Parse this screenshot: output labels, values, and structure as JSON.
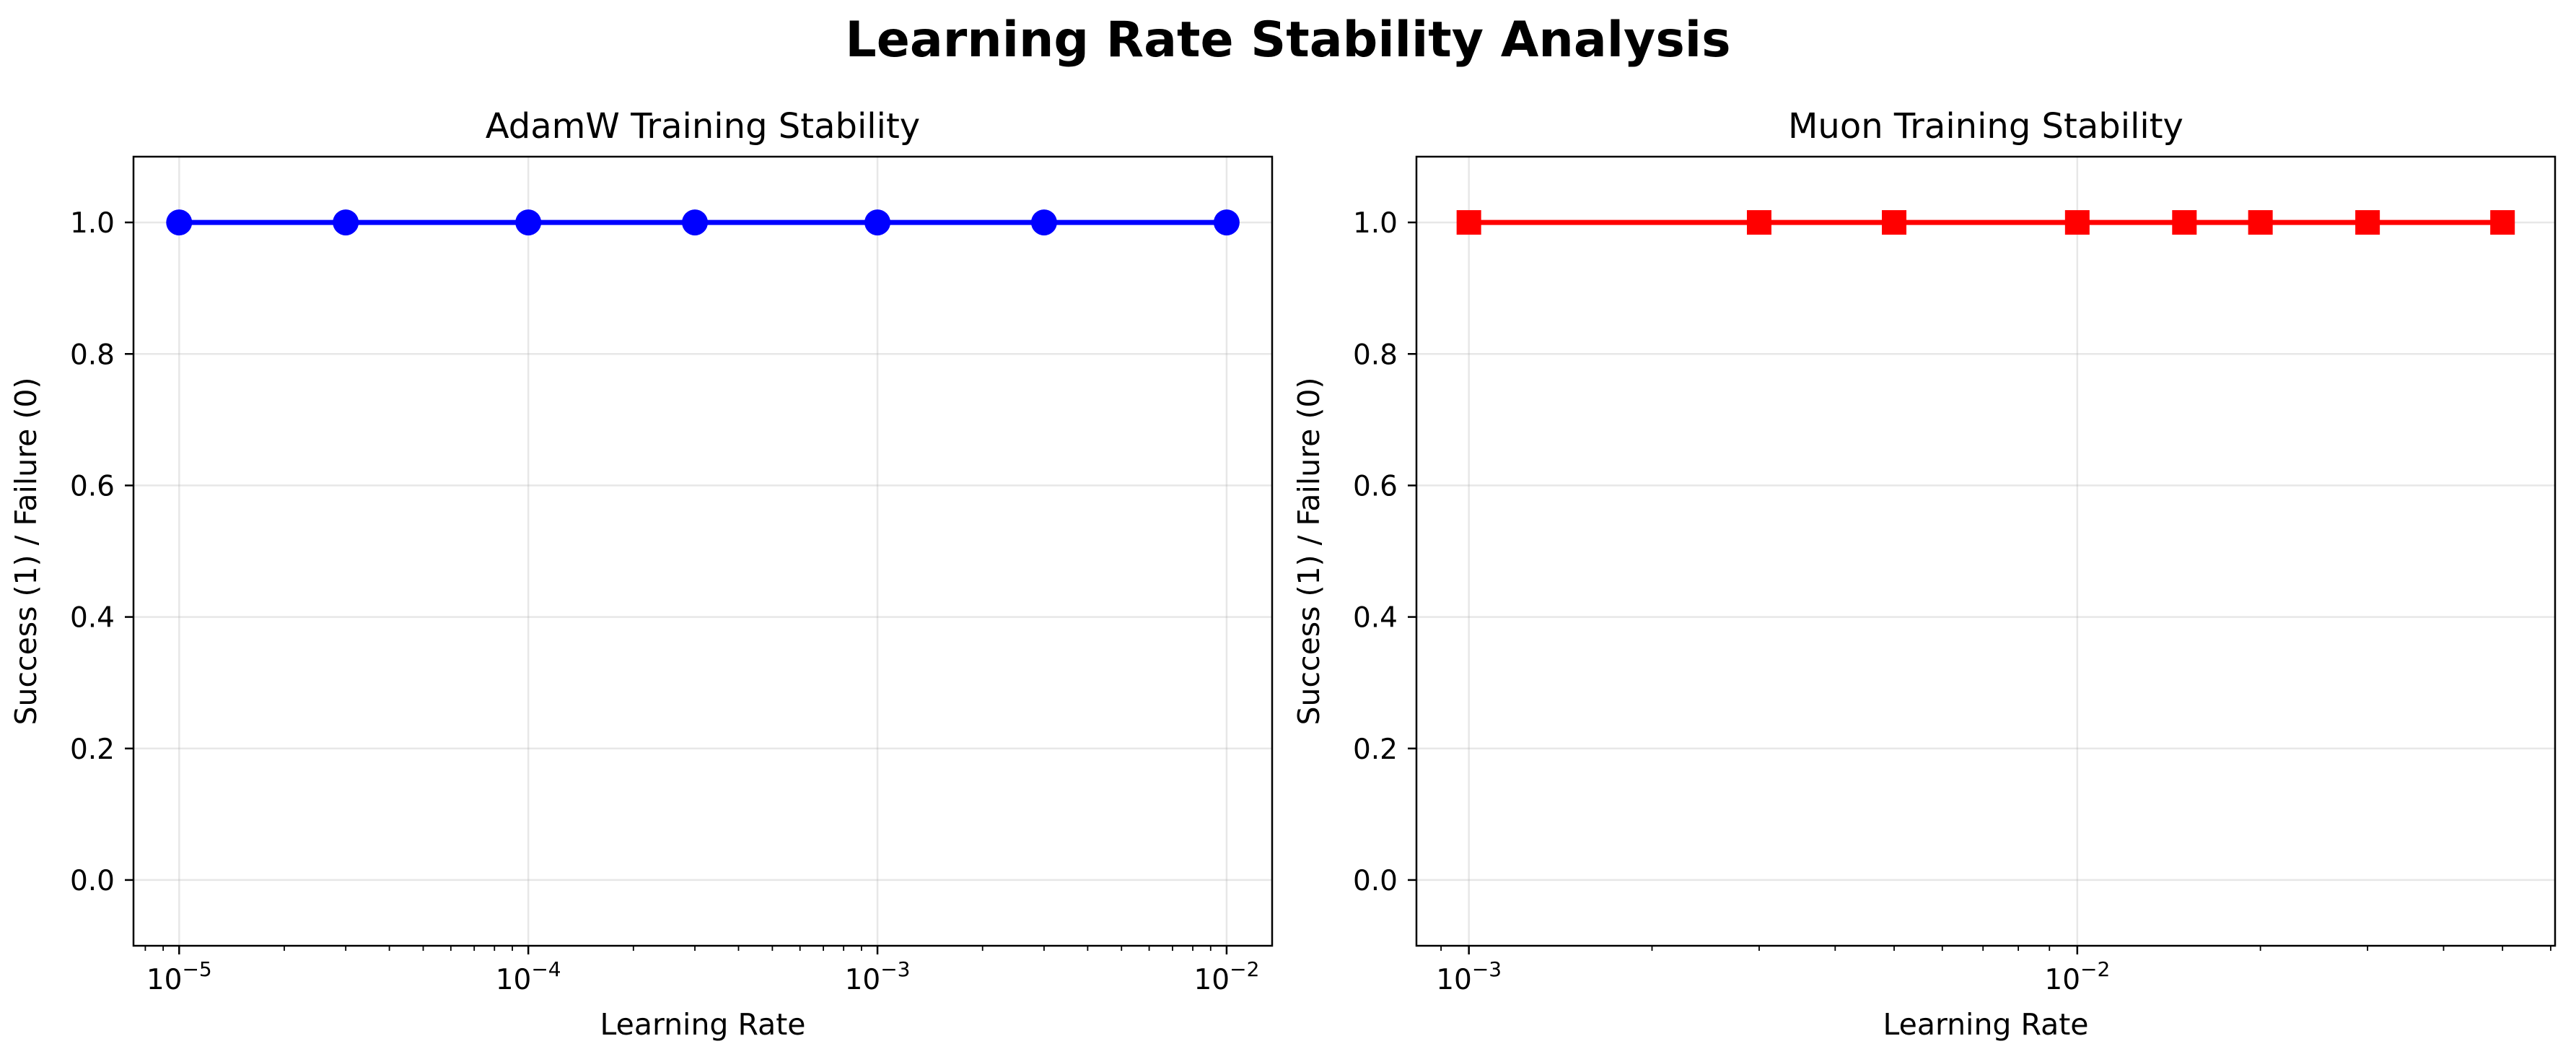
{
  "figure": {
    "title": "Learning Rate Stability Analysis"
  },
  "chart_data": [
    {
      "type": "line",
      "title": "AdamW Training Stability",
      "xlabel": "Learning Rate",
      "ylabel": "Success (1) / Failure (0)",
      "xscale": "log",
      "xlim": [
        7.4e-06,
        0.0135
      ],
      "ylim": [
        -0.1,
        1.1
      ],
      "xticks": [
        1e-05,
        0.0001,
        0.001,
        0.01
      ],
      "xtick_labels": [
        {
          "base": "10",
          "exp": "−5"
        },
        {
          "base": "10",
          "exp": "−4"
        },
        {
          "base": "10",
          "exp": "−3"
        },
        {
          "base": "10",
          "exp": "−2"
        }
      ],
      "yticks": [
        0.0,
        0.2,
        0.4,
        0.6,
        0.8,
        1.0
      ],
      "ytick_labels": [
        "0.0",
        "0.2",
        "0.4",
        "0.6",
        "0.8",
        "1.0"
      ],
      "grid": true,
      "color": "#0000ff",
      "marker": "circle",
      "series": [
        {
          "x": [
            1e-05,
            3e-05,
            0.0001,
            0.0003,
            0.001,
            0.003,
            0.01
          ],
          "y": [
            1,
            1,
            1,
            1,
            1,
            1,
            1
          ]
        }
      ]
    },
    {
      "type": "line",
      "title": "Muon Training Stability",
      "xlabel": "Learning Rate",
      "ylabel": "Success (1) / Failure (0)",
      "xscale": "log",
      "xlim": [
        0.00082,
        0.061
      ],
      "ylim": [
        -0.1,
        1.1
      ],
      "xticks": [
        0.001,
        0.01
      ],
      "xtick_labels": [
        {
          "base": "10",
          "exp": "−3"
        },
        {
          "base": "10",
          "exp": "−2"
        }
      ],
      "yticks": [
        0.0,
        0.2,
        0.4,
        0.6,
        0.8,
        1.0
      ],
      "ytick_labels": [
        "0.0",
        "0.2",
        "0.4",
        "0.6",
        "0.8",
        "1.0"
      ],
      "grid": true,
      "color": "#ff0000",
      "marker": "square",
      "series": [
        {
          "x": [
            0.001,
            0.003,
            0.005,
            0.01,
            0.015,
            0.02,
            0.03,
            0.05
          ],
          "y": [
            1,
            1,
            1,
            1,
            1,
            1,
            1,
            1
          ]
        }
      ]
    }
  ]
}
